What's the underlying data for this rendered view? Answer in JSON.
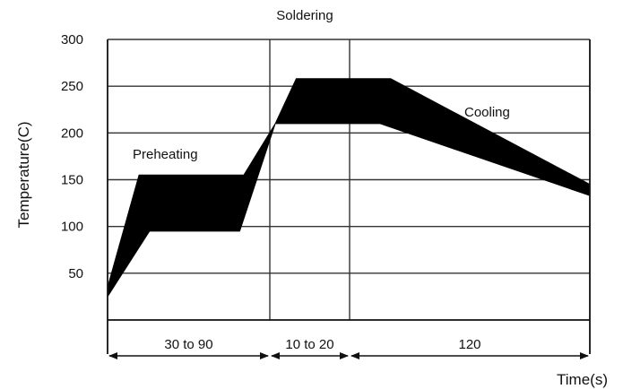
{
  "chart_data": {
    "type": "area",
    "title": "",
    "xlabel": "Time(s)",
    "ylabel": "Temperature(C)",
    "ylim": [
      0,
      300
    ],
    "yticks": [
      50,
      100,
      150,
      200,
      250,
      300
    ],
    "grid": true,
    "x_breakpoints": [
      0,
      90,
      110,
      230
    ],
    "series": [
      {
        "upper": [
          [
            0,
            35
          ],
          [
            15,
            155
          ],
          [
            65,
            155
          ],
          [
            80,
            210
          ],
          [
            90,
            258
          ],
          [
            135,
            258
          ],
          [
            230,
            145
          ]
        ],
        "lower": [
          [
            0,
            25
          ],
          [
            20,
            95
          ],
          [
            63,
            95
          ],
          [
            80,
            210
          ],
          [
            130,
            210
          ],
          [
            230,
            133
          ]
        ]
      }
    ],
    "annotations": [
      {
        "text": "Soldering",
        "at": [
          110,
          325
        ]
      },
      {
        "text": "Preheating",
        "at": [
          29,
          175
        ]
      },
      {
        "text": "Cooling",
        "at": [
          200,
          225
        ]
      }
    ],
    "dimensions": [
      {
        "label": "30 to 90",
        "from": 0,
        "to": 90
      },
      {
        "label": "10 to 20",
        "from": 90,
        "to": 135
      },
      {
        "label": "120",
        "from": 135,
        "to": 270
      }
    ]
  }
}
